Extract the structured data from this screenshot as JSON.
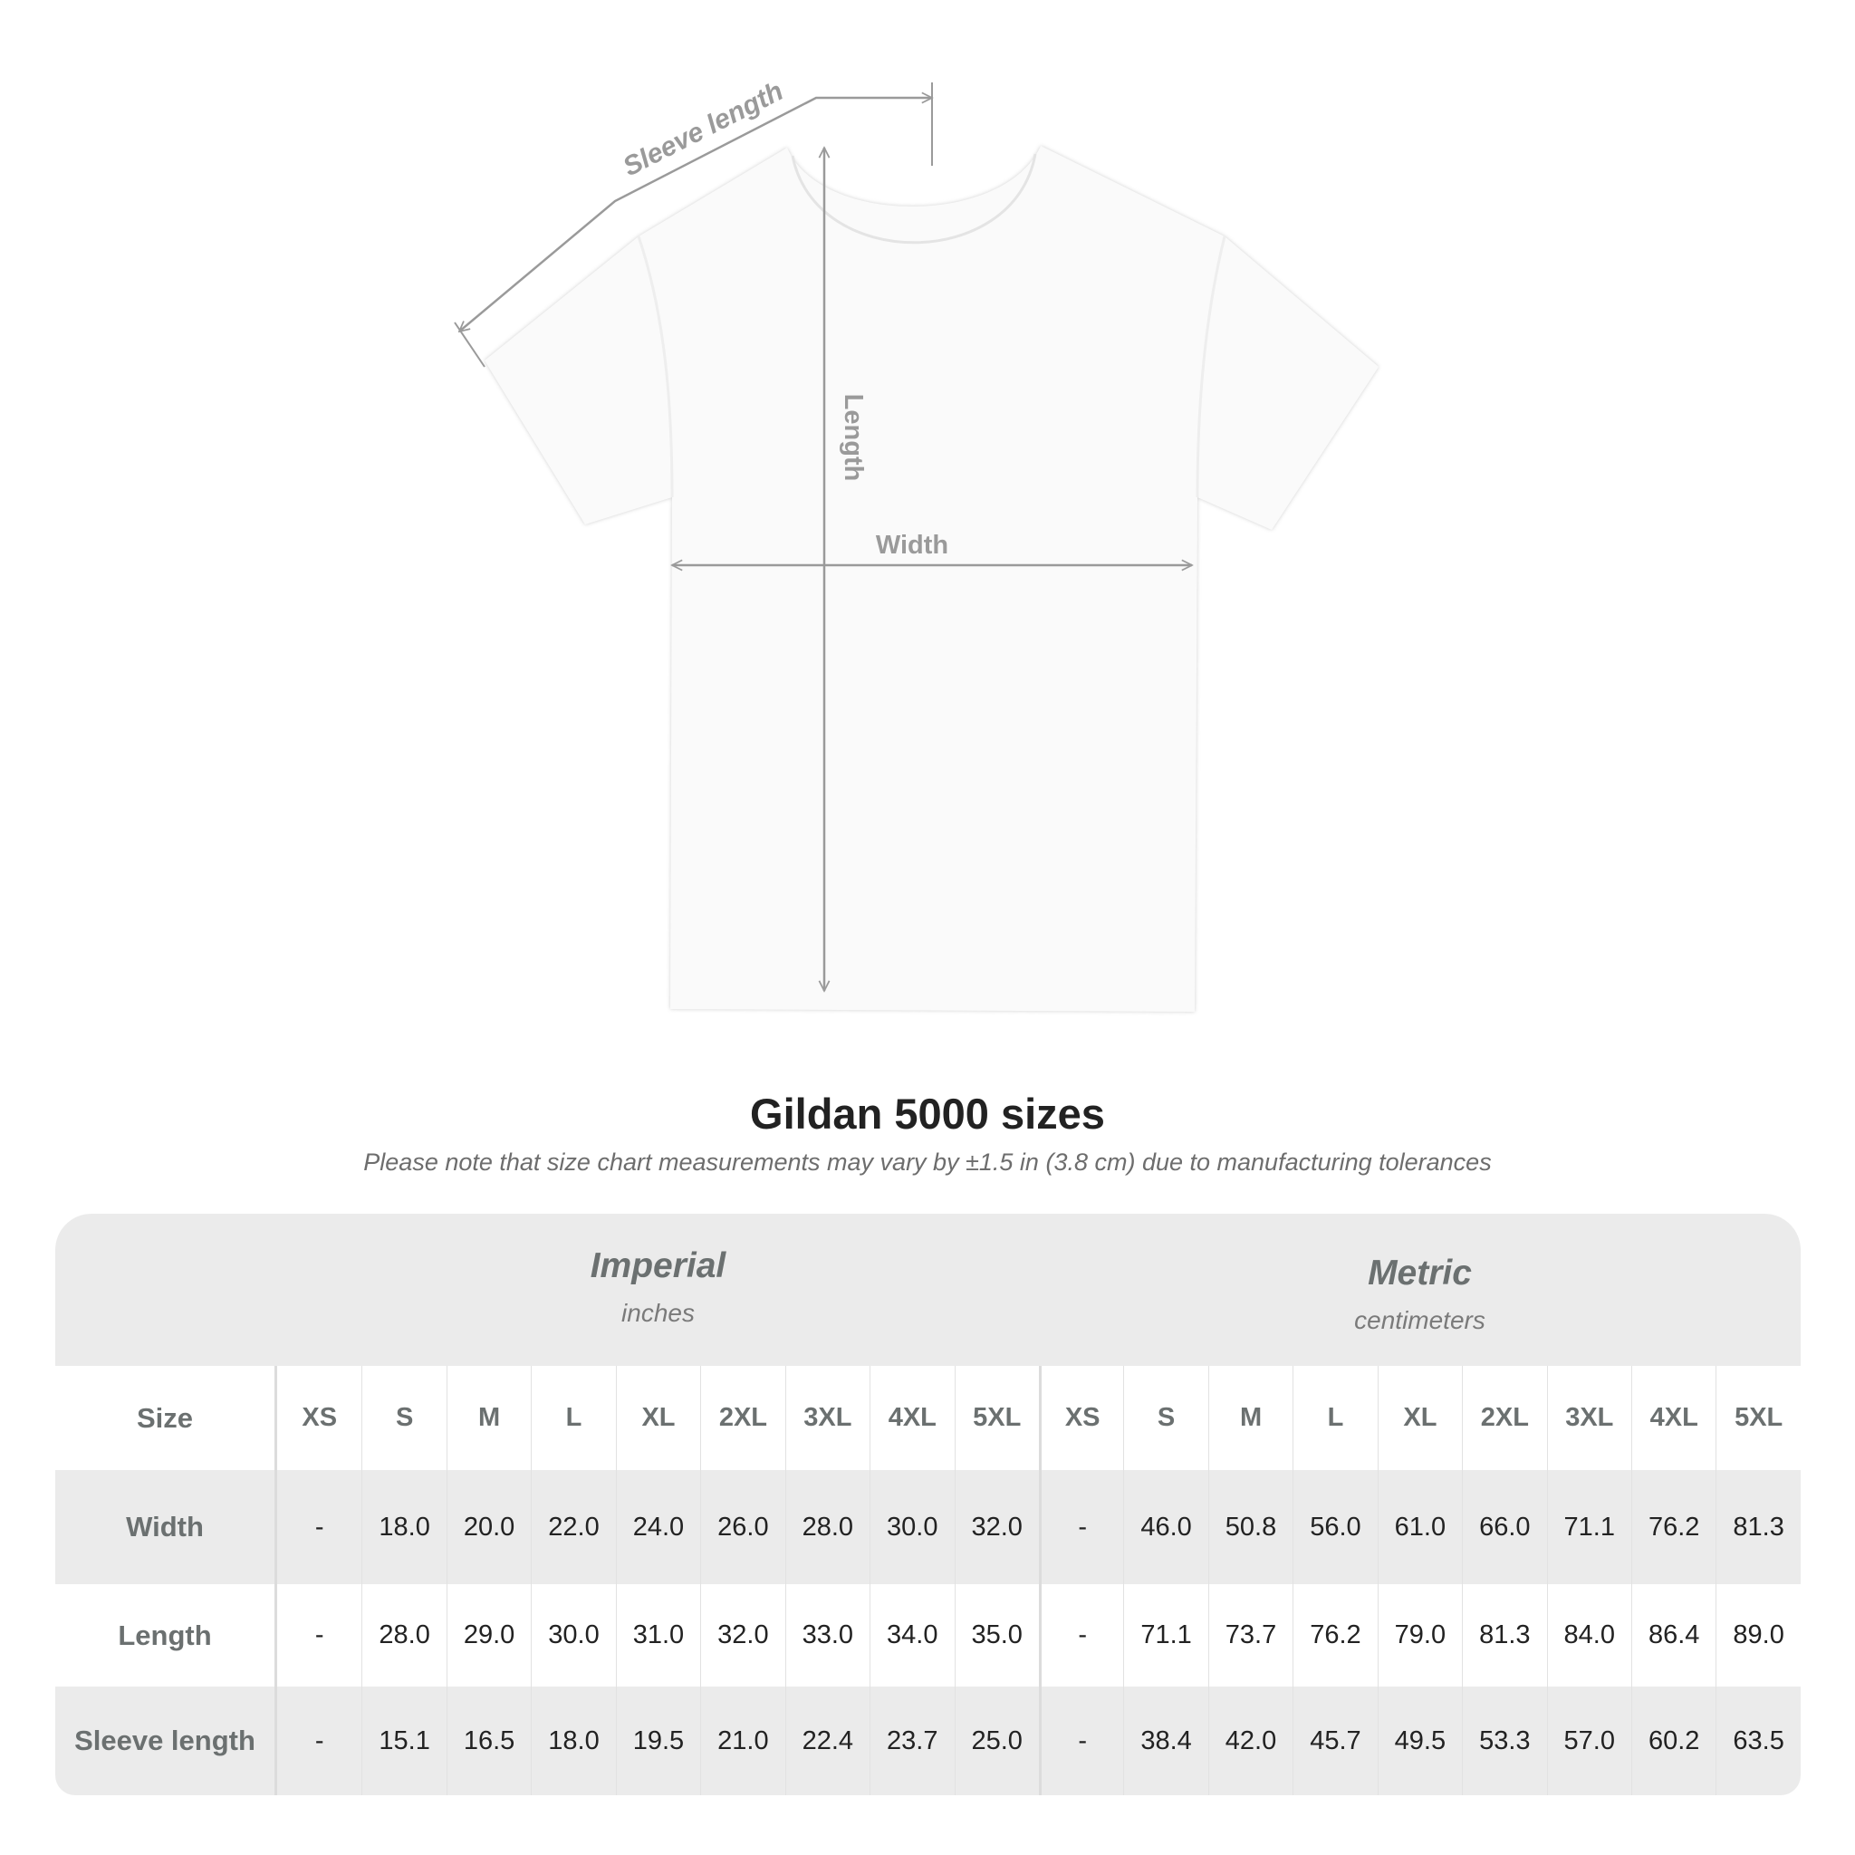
{
  "diagram": {
    "labels": {
      "sleeve_length": "Sleeve length",
      "length": "Length",
      "width": "Width"
    },
    "colors": {
      "measure_line": "#9a9a9a",
      "shirt": "#ffffff"
    }
  },
  "title": "Gildan 5000 sizes",
  "subtitle": "Please note that size chart measurements may vary by ±1.5 in (3.8 cm) due to manufacturing tolerances",
  "table": {
    "imperial": {
      "title": "Imperial",
      "unit": "inches"
    },
    "metric": {
      "title": "Metric",
      "unit": "centimeters"
    },
    "size_label": "Size",
    "sizes": [
      "XS",
      "S",
      "M",
      "L",
      "XL",
      "2XL",
      "3XL",
      "4XL",
      "5XL"
    ],
    "rows": [
      {
        "label": "Width",
        "imperial": [
          "-",
          "18.0",
          "20.0",
          "22.0",
          "24.0",
          "26.0",
          "28.0",
          "30.0",
          "32.0"
        ],
        "metric": [
          "-",
          "46.0",
          "50.8",
          "56.0",
          "61.0",
          "66.0",
          "71.1",
          "76.2",
          "81.3"
        ]
      },
      {
        "label": "Length",
        "imperial": [
          "-",
          "28.0",
          "29.0",
          "30.0",
          "31.0",
          "32.0",
          "33.0",
          "34.0",
          "35.0"
        ],
        "metric": [
          "-",
          "71.1",
          "73.7",
          "76.2",
          "79.0",
          "81.3",
          "84.0",
          "86.4",
          "89.0"
        ]
      },
      {
        "label": "Sleeve length",
        "imperial": [
          "-",
          "15.1",
          "16.5",
          "18.0",
          "19.5",
          "21.0",
          "22.4",
          "23.7",
          "25.0"
        ],
        "metric": [
          "-",
          "38.4",
          "42.0",
          "45.7",
          "49.5",
          "53.3",
          "57.0",
          "60.2",
          "63.5"
        ]
      }
    ],
    "colors": {
      "header_bg": "#ebebeb",
      "label_text": "#6b7070",
      "value_text": "#222222"
    }
  }
}
